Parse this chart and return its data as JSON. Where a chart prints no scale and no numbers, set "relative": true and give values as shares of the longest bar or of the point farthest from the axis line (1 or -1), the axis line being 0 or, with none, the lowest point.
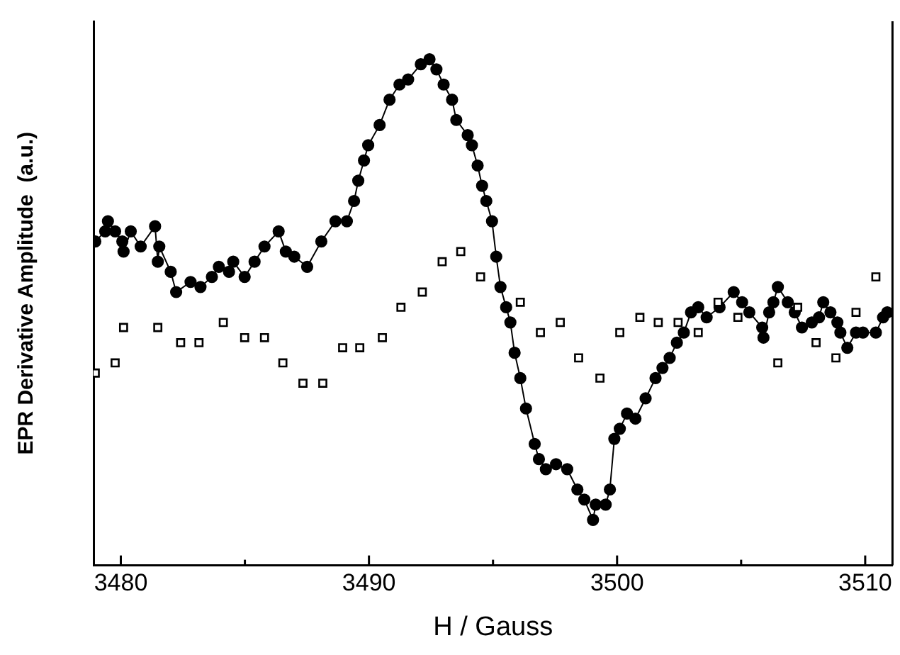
{
  "chart_data": {
    "type": "scatter",
    "xlabel": "H / Gauss",
    "ylabel": "EPR Derivative Amplitude  (a.u.)",
    "relative": true,
    "xlim": [
      3478.9,
      3511.1
    ],
    "xticks": [
      3480,
      {
        "value": 3485,
        "label": null
      },
      3490,
      {
        "value": 3495,
        "label": null
      },
      3500,
      {
        "value": 3505,
        "label": null
      },
      3510
    ],
    "grid": false,
    "legend": false,
    "series": [
      {
        "type": "line",
        "marker": "circle",
        "color": "#000000",
        "x": [
          3478.97,
          3479.37,
          3479.48,
          3479.77,
          3480.06,
          3480.11,
          3480.4,
          3480.8,
          3481.38,
          3481.49,
          3481.55,
          3482.01,
          3482.23,
          3482.81,
          3483.21,
          3483.67,
          3483.95,
          3484.36,
          3484.53,
          3484.99,
          3485.39,
          3485.79,
          3486.36,
          3486.65,
          3486.99,
          3487.51,
          3488.08,
          3488.65,
          3489.11,
          3489.4,
          3489.57,
          3489.8,
          3489.97,
          3490.43,
          3490.83,
          3491.23,
          3491.58,
          3492.09,
          3492.44,
          3492.72,
          3493.01,
          3493.35,
          3493.52,
          3493.98,
          3494.15,
          3494.38,
          3494.56,
          3494.73,
          3494.96,
          3495.13,
          3495.3,
          3495.53,
          3495.7,
          3495.87,
          3496.1,
          3496.33,
          3496.68,
          3496.85,
          3497.13,
          3497.54,
          3497.99,
          3498.4,
          3498.68,
          3499.03,
          3499.14,
          3499.54,
          3499.71,
          3499.89,
          3500.11,
          3500.4,
          3500.74,
          3501.15,
          3501.55,
          3501.83,
          3502.12,
          3502.41,
          3502.69,
          3502.98,
          3503.27,
          3503.61,
          3504.13,
          3504.7,
          3505.04,
          3505.33,
          3505.85,
          3505.9,
          3506.13,
          3506.3,
          3506.48,
          3506.88,
          3507.16,
          3507.45,
          3507.85,
          3508.14,
          3508.31,
          3508.6,
          3508.88,
          3509.0,
          3509.28,
          3509.63,
          3509.91,
          3510.43,
          3510.72,
          3510.89
        ],
        "values": [
          0.64,
          0.66,
          0.68,
          0.66,
          0.64,
          0.62,
          0.66,
          0.63,
          0.67,
          0.6,
          0.63,
          0.58,
          0.54,
          0.56,
          0.55,
          0.57,
          0.59,
          0.58,
          0.6,
          0.57,
          0.6,
          0.63,
          0.66,
          0.62,
          0.61,
          0.59,
          0.64,
          0.68,
          0.68,
          0.72,
          0.76,
          0.8,
          0.83,
          0.87,
          0.92,
          0.95,
          0.96,
          0.99,
          1.0,
          0.98,
          0.95,
          0.92,
          0.88,
          0.85,
          0.83,
          0.79,
          0.75,
          0.72,
          0.68,
          0.61,
          0.55,
          0.51,
          0.48,
          0.42,
          0.37,
          0.31,
          0.24,
          0.21,
          0.19,
          0.2,
          0.19,
          0.15,
          0.13,
          0.09,
          0.12,
          0.12,
          0.15,
          0.25,
          0.27,
          0.3,
          0.29,
          0.33,
          0.37,
          0.39,
          0.41,
          0.44,
          0.46,
          0.5,
          0.51,
          0.49,
          0.51,
          0.54,
          0.52,
          0.5,
          0.47,
          0.45,
          0.5,
          0.52,
          0.55,
          0.52,
          0.5,
          0.47,
          0.48,
          0.49,
          0.52,
          0.5,
          0.48,
          0.46,
          0.43,
          0.46,
          0.46,
          0.46,
          0.49,
          0.5
        ]
      },
      {
        "marker": "square",
        "color": "#000000",
        "x": [
          3478.97,
          3479.77,
          3480.11,
          3481.49,
          3482.41,
          3483.15,
          3484.13,
          3484.99,
          3485.79,
          3486.53,
          3487.34,
          3488.14,
          3488.94,
          3489.63,
          3490.54,
          3491.29,
          3492.15,
          3492.95,
          3493.7,
          3494.5,
          3496.1,
          3496.91,
          3497.71,
          3498.45,
          3499.31,
          3500.11,
          3500.92,
          3501.66,
          3502.46,
          3503.27,
          3504.07,
          3504.87,
          3506.48,
          3507.28,
          3508.02,
          3508.82,
          3509.63,
          3510.43
        ],
        "values": [
          0.38,
          0.4,
          0.47,
          0.47,
          0.44,
          0.44,
          0.48,
          0.45,
          0.45,
          0.4,
          0.36,
          0.36,
          0.43,
          0.43,
          0.45,
          0.51,
          0.54,
          0.6,
          0.62,
          0.57,
          0.52,
          0.46,
          0.48,
          0.41,
          0.37,
          0.46,
          0.49,
          0.48,
          0.48,
          0.46,
          0.52,
          0.49,
          0.4,
          0.51,
          0.44,
          0.41,
          0.5,
          0.57
        ]
      }
    ]
  }
}
